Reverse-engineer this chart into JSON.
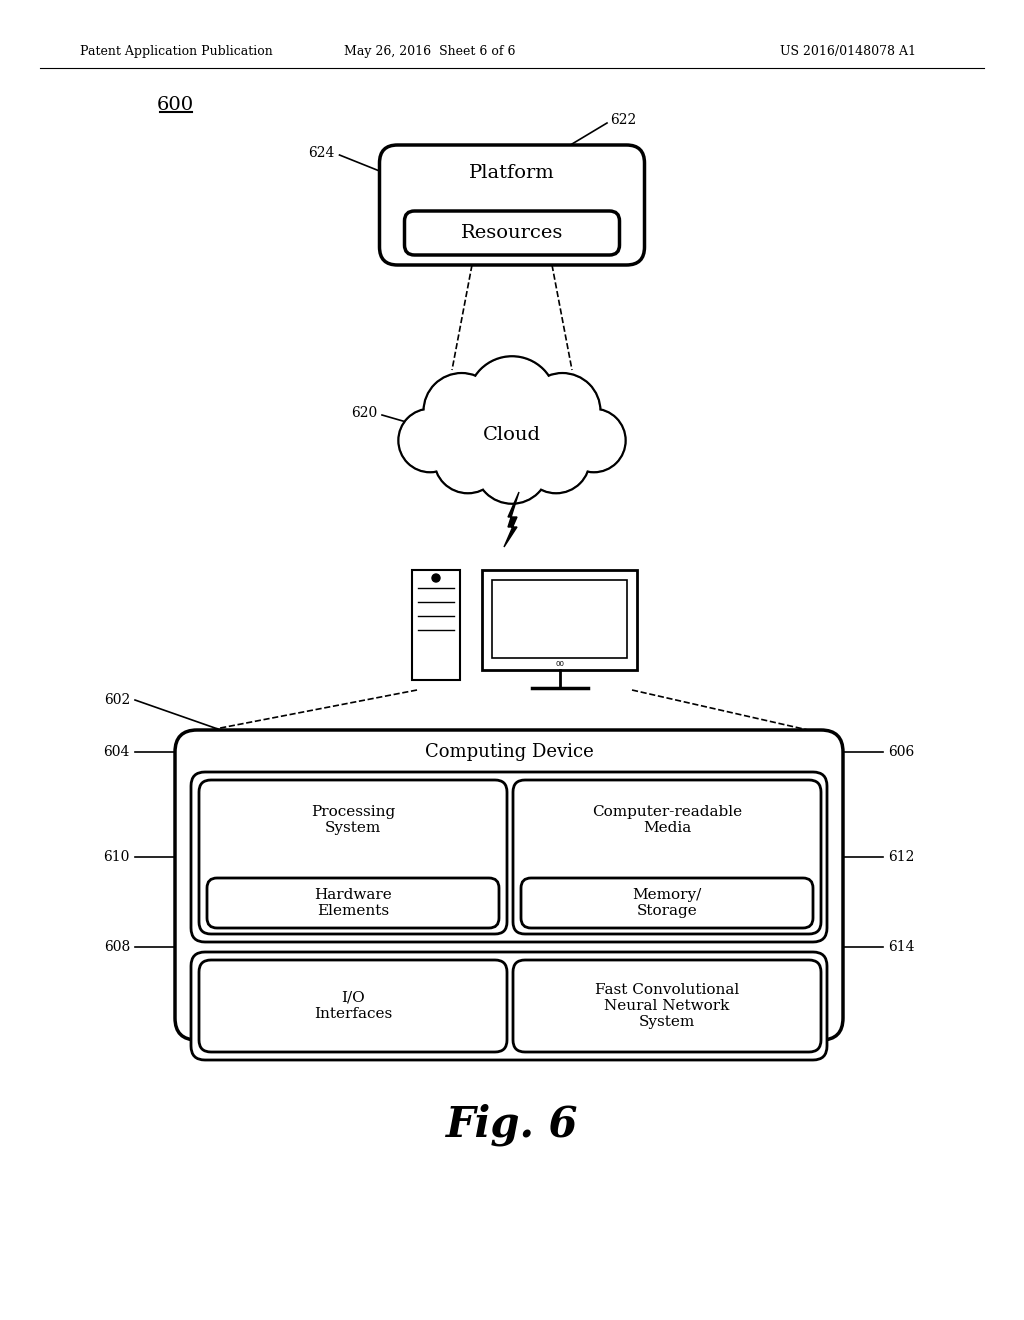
{
  "bg_color": "#ffffff",
  "header_left": "Patent Application Publication",
  "header_mid": "May 26, 2016  Sheet 6 of 6",
  "header_right": "US 2016/0148078 A1",
  "fig_label": "Fig. 6",
  "diagram_label": "600",
  "platform_label": "622",
  "platform_inner_label": "624",
  "platform_text": "Platform",
  "resources_text": "Resources",
  "cloud_label": "620",
  "cloud_text": "Cloud",
  "computing_device_text": "Computing Device",
  "cd_label_tl": "604",
  "cd_label_tr": "606",
  "cd_label_bl": "608",
  "cd_label_br": "614",
  "box610_label": "610",
  "box612_label": "612",
  "processing_text": "Processing\nSystem",
  "computer_readable_text": "Computer-readable\nMedia",
  "hardware_text": "Hardware\nElements",
  "memory_text": "Memory/\nStorage",
  "io_text": "I/O\nInterfaces",
  "fcnn_text": "Fast Convolutional\nNeural Network\nSystem",
  "cd_ref": "602"
}
